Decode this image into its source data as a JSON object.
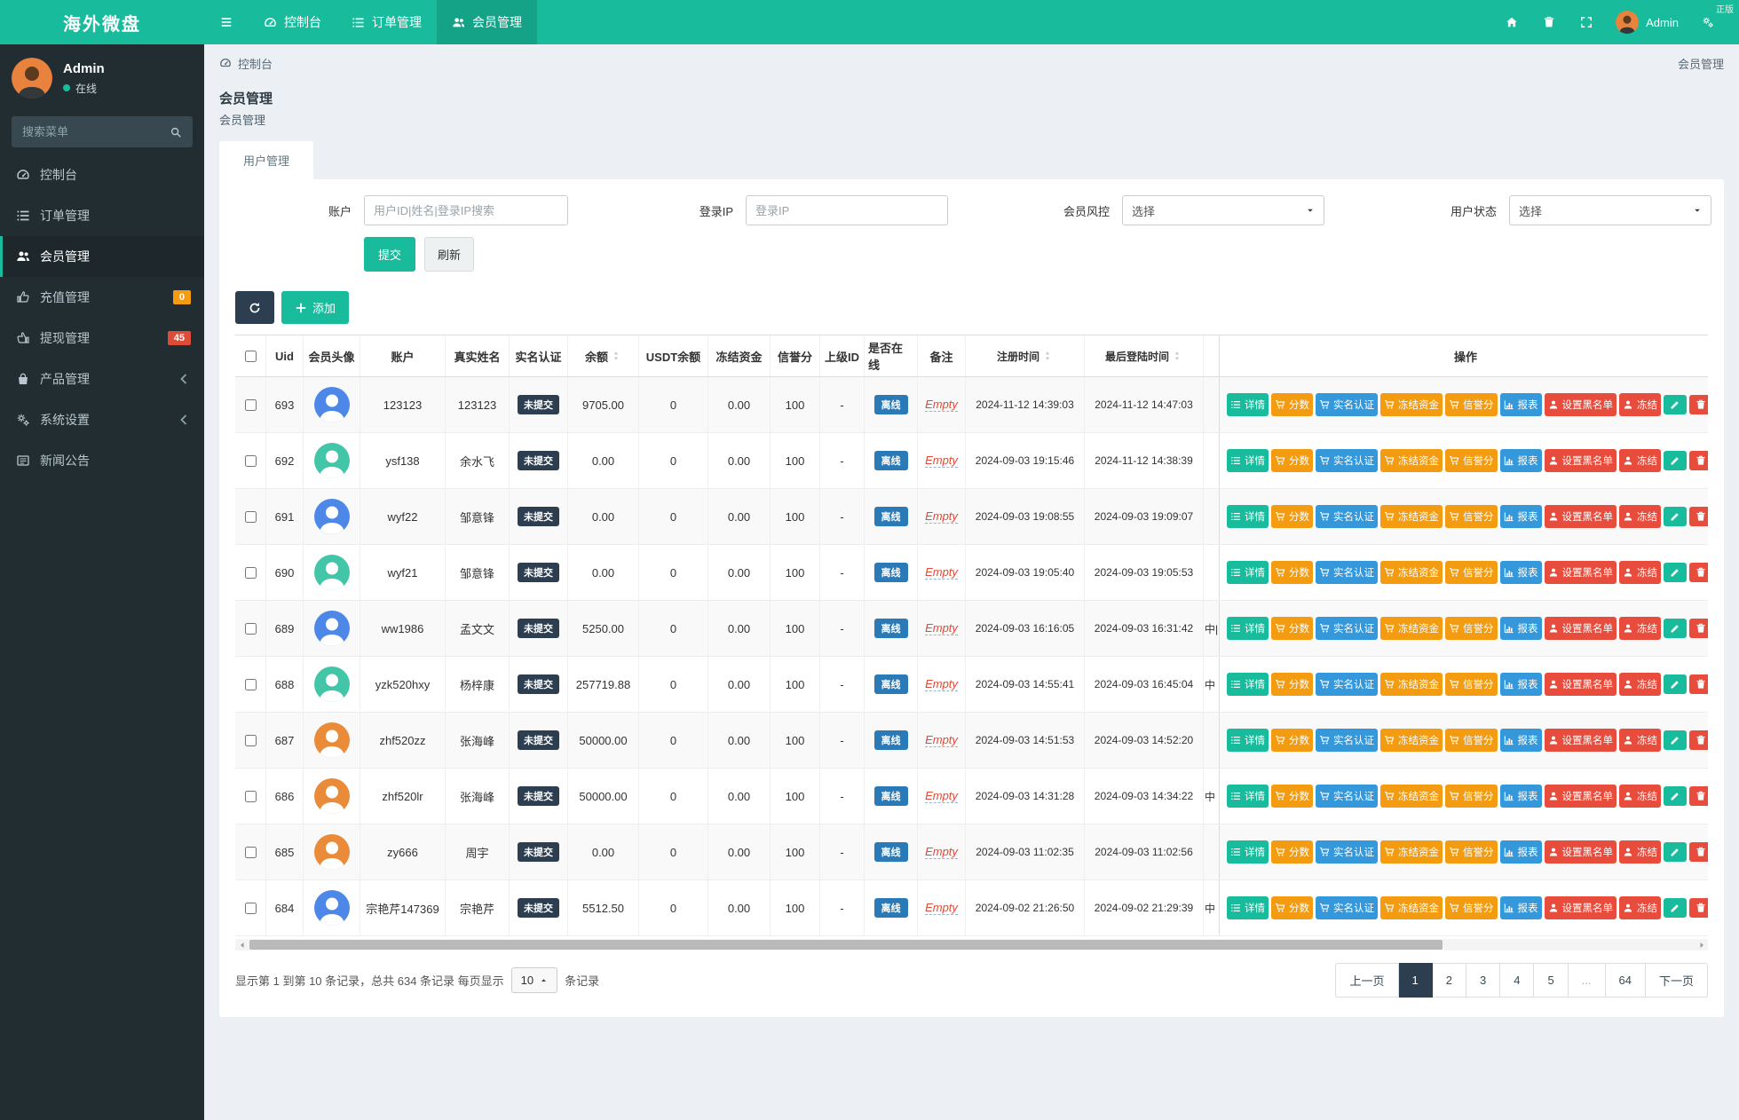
{
  "colors": {
    "accent": "#18bc9c",
    "sidebar_bg": "#222d32",
    "badge_dark": "#2c3e50",
    "badge_blue": "#2b7ab8",
    "btn_green": "#18bc9c",
    "btn_orange": "#f39c12",
    "btn_blue": "#3498db",
    "btn_red": "#e74c3c",
    "pagination_active": "#2c3e50"
  },
  "navbar": {
    "brand": "海外微盘",
    "corner_text": "正版",
    "items": [
      {
        "key": "dashboard",
        "icon": "dashboard-icon",
        "label": "控制台",
        "active": false
      },
      {
        "key": "orders",
        "icon": "list-icon",
        "label": "订单管理",
        "active": false
      },
      {
        "key": "members",
        "icon": "users-icon",
        "label": "会员管理",
        "active": true
      }
    ],
    "right_icons": [
      {
        "key": "home",
        "icon": "home-icon"
      },
      {
        "key": "trash",
        "icon": "trash-icon"
      },
      {
        "key": "fullscreen",
        "icon": "expand-icon"
      }
    ],
    "user_name": "Admin"
  },
  "sidebar": {
    "user_name": "Admin",
    "user_status": "在线",
    "search_placeholder": "搜索菜单",
    "items": [
      {
        "key": "dashboard",
        "icon": "dashboard-icon",
        "label": "控制台"
      },
      {
        "key": "orders",
        "icon": "list-icon",
        "label": "订单管理"
      },
      {
        "key": "members",
        "icon": "users-icon",
        "label": "会员管理",
        "active": true
      },
      {
        "key": "recharge",
        "icon": "hand-icon",
        "label": "充值管理",
        "badge": "0",
        "badge_color": "#f39c12"
      },
      {
        "key": "withdraw",
        "icon": "hand2-icon",
        "label": "提现管理",
        "badge": "45",
        "badge_color": "#dd4b39"
      },
      {
        "key": "products",
        "icon": "bag-icon",
        "label": "产品管理",
        "chevron": true
      },
      {
        "key": "settings",
        "icon": "gears-icon",
        "label": "系统设置",
        "chevron": true
      },
      {
        "key": "news",
        "icon": "news-icon",
        "label": "新闻公告"
      }
    ]
  },
  "breadcrumb": {
    "left": "控制台",
    "right": "会员管理"
  },
  "page": {
    "title": "会员管理",
    "subtitle": "会员管理",
    "tab": "用户管理"
  },
  "filters": {
    "account_label": "账户",
    "account_placeholder": "用户ID|姓名|登录IP搜索",
    "ip_label": "登录IP",
    "ip_placeholder": "登录IP",
    "risk_label": "会员风控",
    "risk_value": "选择",
    "status_label": "用户状态",
    "status_value": "选择",
    "submit_label": "提交",
    "refresh_label": "刷新"
  },
  "toolbar": {
    "add_label": "添加"
  },
  "table": {
    "columns": [
      {
        "key": "select",
        "label": ""
      },
      {
        "key": "uid",
        "label": "Uid"
      },
      {
        "key": "avatar",
        "label": "会员头像"
      },
      {
        "key": "account",
        "label": "账户"
      },
      {
        "key": "real_name",
        "label": "真实姓名"
      },
      {
        "key": "verify_status",
        "label": "实名认证"
      },
      {
        "key": "balance",
        "label": "余额",
        "sortable": true
      },
      {
        "key": "usdt_balance",
        "label": "USDT余额"
      },
      {
        "key": "frozen_funds",
        "label": "冻结资金"
      },
      {
        "key": "credit_score",
        "label": "信誉分"
      },
      {
        "key": "parent_id",
        "label": "上级ID"
      },
      {
        "key": "online_status",
        "label": "是否在线"
      },
      {
        "key": "remark",
        "label": "备注"
      },
      {
        "key": "register_time",
        "label": "注册时间",
        "sortable": true
      },
      {
        "key": "last_login_time",
        "label": "最后登陆时间",
        "sortable": true
      },
      {
        "key": "sliver",
        "label": ""
      },
      {
        "key": "actions",
        "label": "操作"
      }
    ],
    "badge_unverified": "未提交",
    "badge_offline": "离线",
    "note_empty": "Empty",
    "rows": [
      {
        "uid": "693",
        "account": "123123",
        "real_name": "123123",
        "balance": "9705.00",
        "usdt_balance": "0",
        "frozen_funds": "0.00",
        "credit_score": "100",
        "parent_id": "-",
        "register_time": "2024-11-12 14:39:03",
        "last_login_time": "2024-11-12 14:47:03",
        "sliver": "",
        "avatar_color": "#4d88e8"
      },
      {
        "uid": "692",
        "account": "ysf138",
        "real_name": "余水飞",
        "balance": "0.00",
        "usdt_balance": "0",
        "frozen_funds": "0.00",
        "credit_score": "100",
        "parent_id": "-",
        "register_time": "2024-09-03 19:15:46",
        "last_login_time": "2024-11-12 14:38:39",
        "sliver": "",
        "avatar_color": "#43c6a8"
      },
      {
        "uid": "691",
        "account": "wyf22",
        "real_name": "邹意锋",
        "balance": "0.00",
        "usdt_balance": "0",
        "frozen_funds": "0.00",
        "credit_score": "100",
        "parent_id": "-",
        "register_time": "2024-09-03 19:08:55",
        "last_login_time": "2024-09-03 19:09:07",
        "sliver": "",
        "avatar_color": "#4d88e8"
      },
      {
        "uid": "690",
        "account": "wyf21",
        "real_name": "邹意锋",
        "balance": "0.00",
        "usdt_balance": "0",
        "frozen_funds": "0.00",
        "credit_score": "100",
        "parent_id": "-",
        "register_time": "2024-09-03 19:05:40",
        "last_login_time": "2024-09-03 19:05:53",
        "sliver": "",
        "avatar_color": "#43c6a8"
      },
      {
        "uid": "689",
        "account": "ww1986",
        "real_name": "孟文文",
        "balance": "5250.00",
        "usdt_balance": "0",
        "frozen_funds": "0.00",
        "credit_score": "100",
        "parent_id": "-",
        "register_time": "2024-09-03 16:16:05",
        "last_login_time": "2024-09-03 16:31:42",
        "sliver": "中|",
        "avatar_color": "#4d88e8"
      },
      {
        "uid": "688",
        "account": "yzk520hxy",
        "real_name": "杨梓康",
        "balance": "257719.88",
        "usdt_balance": "0",
        "frozen_funds": "0.00",
        "credit_score": "100",
        "parent_id": "-",
        "register_time": "2024-09-03 14:55:41",
        "last_login_time": "2024-09-03 16:45:04",
        "sliver": "中",
        "avatar_color": "#43c6a8"
      },
      {
        "uid": "687",
        "account": "zhf520zz",
        "real_name": "张海峰",
        "balance": "50000.00",
        "usdt_balance": "0",
        "frozen_funds": "0.00",
        "credit_score": "100",
        "parent_id": "-",
        "register_time": "2024-09-03 14:51:53",
        "last_login_time": "2024-09-03 14:52:20",
        "sliver": "",
        "avatar_color": "#e98b39"
      },
      {
        "uid": "686",
        "account": "zhf520lr",
        "real_name": "张海峰",
        "balance": "50000.00",
        "usdt_balance": "0",
        "frozen_funds": "0.00",
        "credit_score": "100",
        "parent_id": "-",
        "register_time": "2024-09-03 14:31:28",
        "last_login_time": "2024-09-03 14:34:22",
        "sliver": "中",
        "avatar_color": "#e98b39"
      },
      {
        "uid": "685",
        "account": "zy666",
        "real_name": "周宇",
        "balance": "0.00",
        "usdt_balance": "0",
        "frozen_funds": "0.00",
        "credit_score": "100",
        "parent_id": "-",
        "register_time": "2024-09-03 11:02:35",
        "last_login_time": "2024-09-03 11:02:56",
        "sliver": "",
        "avatar_color": "#e98b39"
      },
      {
        "uid": "684",
        "account": "宗艳芹147369",
        "real_name": "宗艳芹",
        "balance": "5512.50",
        "usdt_balance": "0",
        "frozen_funds": "0.00",
        "credit_score": "100",
        "parent_id": "-",
        "register_time": "2024-09-02 21:26:50",
        "last_login_time": "2024-09-02 21:29:39",
        "sliver": "中",
        "avatar_color": "#4d88e8"
      }
    ],
    "actions": [
      {
        "key": "detail",
        "label": "详情",
        "icon": "list-icon",
        "color": "green"
      },
      {
        "key": "score",
        "label": "分数",
        "icon": "cart-icon",
        "color": "orange"
      },
      {
        "key": "real-name-verify",
        "label": "实名认证",
        "icon": "cart-icon",
        "color": "blue"
      },
      {
        "key": "freeze-funds",
        "label": "冻结资金",
        "icon": "cart-icon",
        "color": "orange"
      },
      {
        "key": "credit-score",
        "label": "信誉分",
        "icon": "cart-icon",
        "color": "orange"
      },
      {
        "key": "report",
        "label": "报表",
        "icon": "chart-icon",
        "color": "blue"
      },
      {
        "key": "set-blacklist",
        "label": "设置黑名单",
        "icon": "user-icon",
        "color": "red"
      },
      {
        "key": "freeze",
        "label": "冻结",
        "icon": "user-icon",
        "color": "red"
      },
      {
        "key": "edit",
        "label": "",
        "icon": "pencil-icon",
        "color": "green"
      },
      {
        "key": "delete",
        "label": "",
        "icon": "trash-icon",
        "color": "red"
      }
    ]
  },
  "footer": {
    "info_prefix": "显示第 1 到第 10 条记录，总共 634 条记录 每页显示",
    "page_size": "10",
    "info_suffix": "条记录",
    "pages": [
      {
        "key": "prev",
        "label": "上一页"
      },
      {
        "key": "page-1",
        "label": "1",
        "active": true
      },
      {
        "key": "page-2",
        "label": "2"
      },
      {
        "key": "page-3",
        "label": "3"
      },
      {
        "key": "page-4",
        "label": "4"
      },
      {
        "key": "page-5",
        "label": "5"
      },
      {
        "key": "ellipsis",
        "label": "...",
        "disabled": true
      },
      {
        "key": "page-64",
        "label": "64"
      },
      {
        "key": "next",
        "label": "下一页"
      }
    ]
  }
}
